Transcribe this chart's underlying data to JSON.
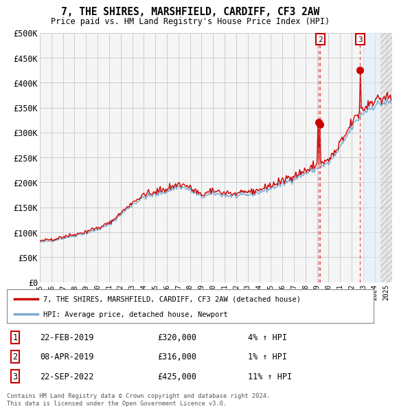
{
  "title": "7, THE SHIRES, MARSHFIELD, CARDIFF, CF3 2AW",
  "subtitle": "Price paid vs. HM Land Registry's House Price Index (HPI)",
  "ylabel_ticks": [
    "£0",
    "£50K",
    "£100K",
    "£150K",
    "£200K",
    "£250K",
    "£300K",
    "£350K",
    "£400K",
    "£450K",
    "£500K"
  ],
  "ytick_vals": [
    0,
    50000,
    100000,
    150000,
    200000,
    250000,
    300000,
    350000,
    400000,
    450000,
    500000
  ],
  "ylim": [
    0,
    500000
  ],
  "xlim_start": 1995.0,
  "xlim_end": 2025.5,
  "hpi_color": "#7aaad0",
  "price_color": "#cc0000",
  "sale_marker_color": "#cc0000",
  "dashed_line_color": "#dd4444",
  "legend_label_red": "7, THE SHIRES, MARSHFIELD, CARDIFF, CF3 2AW (detached house)",
  "legend_label_blue": "HPI: Average price, detached house, Newport",
  "footer_text": "Contains HM Land Registry data © Crown copyright and database right 2024.\nThis data is licensed under the Open Government Licence v3.0.",
  "sale_points": [
    {
      "num": 1,
      "date_x": 2019.12,
      "price": 320000
    },
    {
      "num": 2,
      "date_x": 2019.27,
      "price": 316000
    },
    {
      "num": 3,
      "date_x": 2022.73,
      "price": 425000
    }
  ],
  "table_rows": [
    {
      "num": "1",
      "date": "22-FEB-2019",
      "price": "£320,000",
      "hpi": "4% ↑ HPI"
    },
    {
      "num": "2",
      "date": "08-APR-2019",
      "price": "£316,000",
      "hpi": "1% ↑ HPI"
    },
    {
      "num": "3",
      "date": "22-SEP-2022",
      "price": "£425,000",
      "hpi": "11% ↑ HPI"
    }
  ],
  "hatched_region_start": 2024.5,
  "future_fill_start": 2023.0,
  "background_color": "#ffffff",
  "grid_color": "#cccccc",
  "plot_bg_color": "#f5f5f5"
}
